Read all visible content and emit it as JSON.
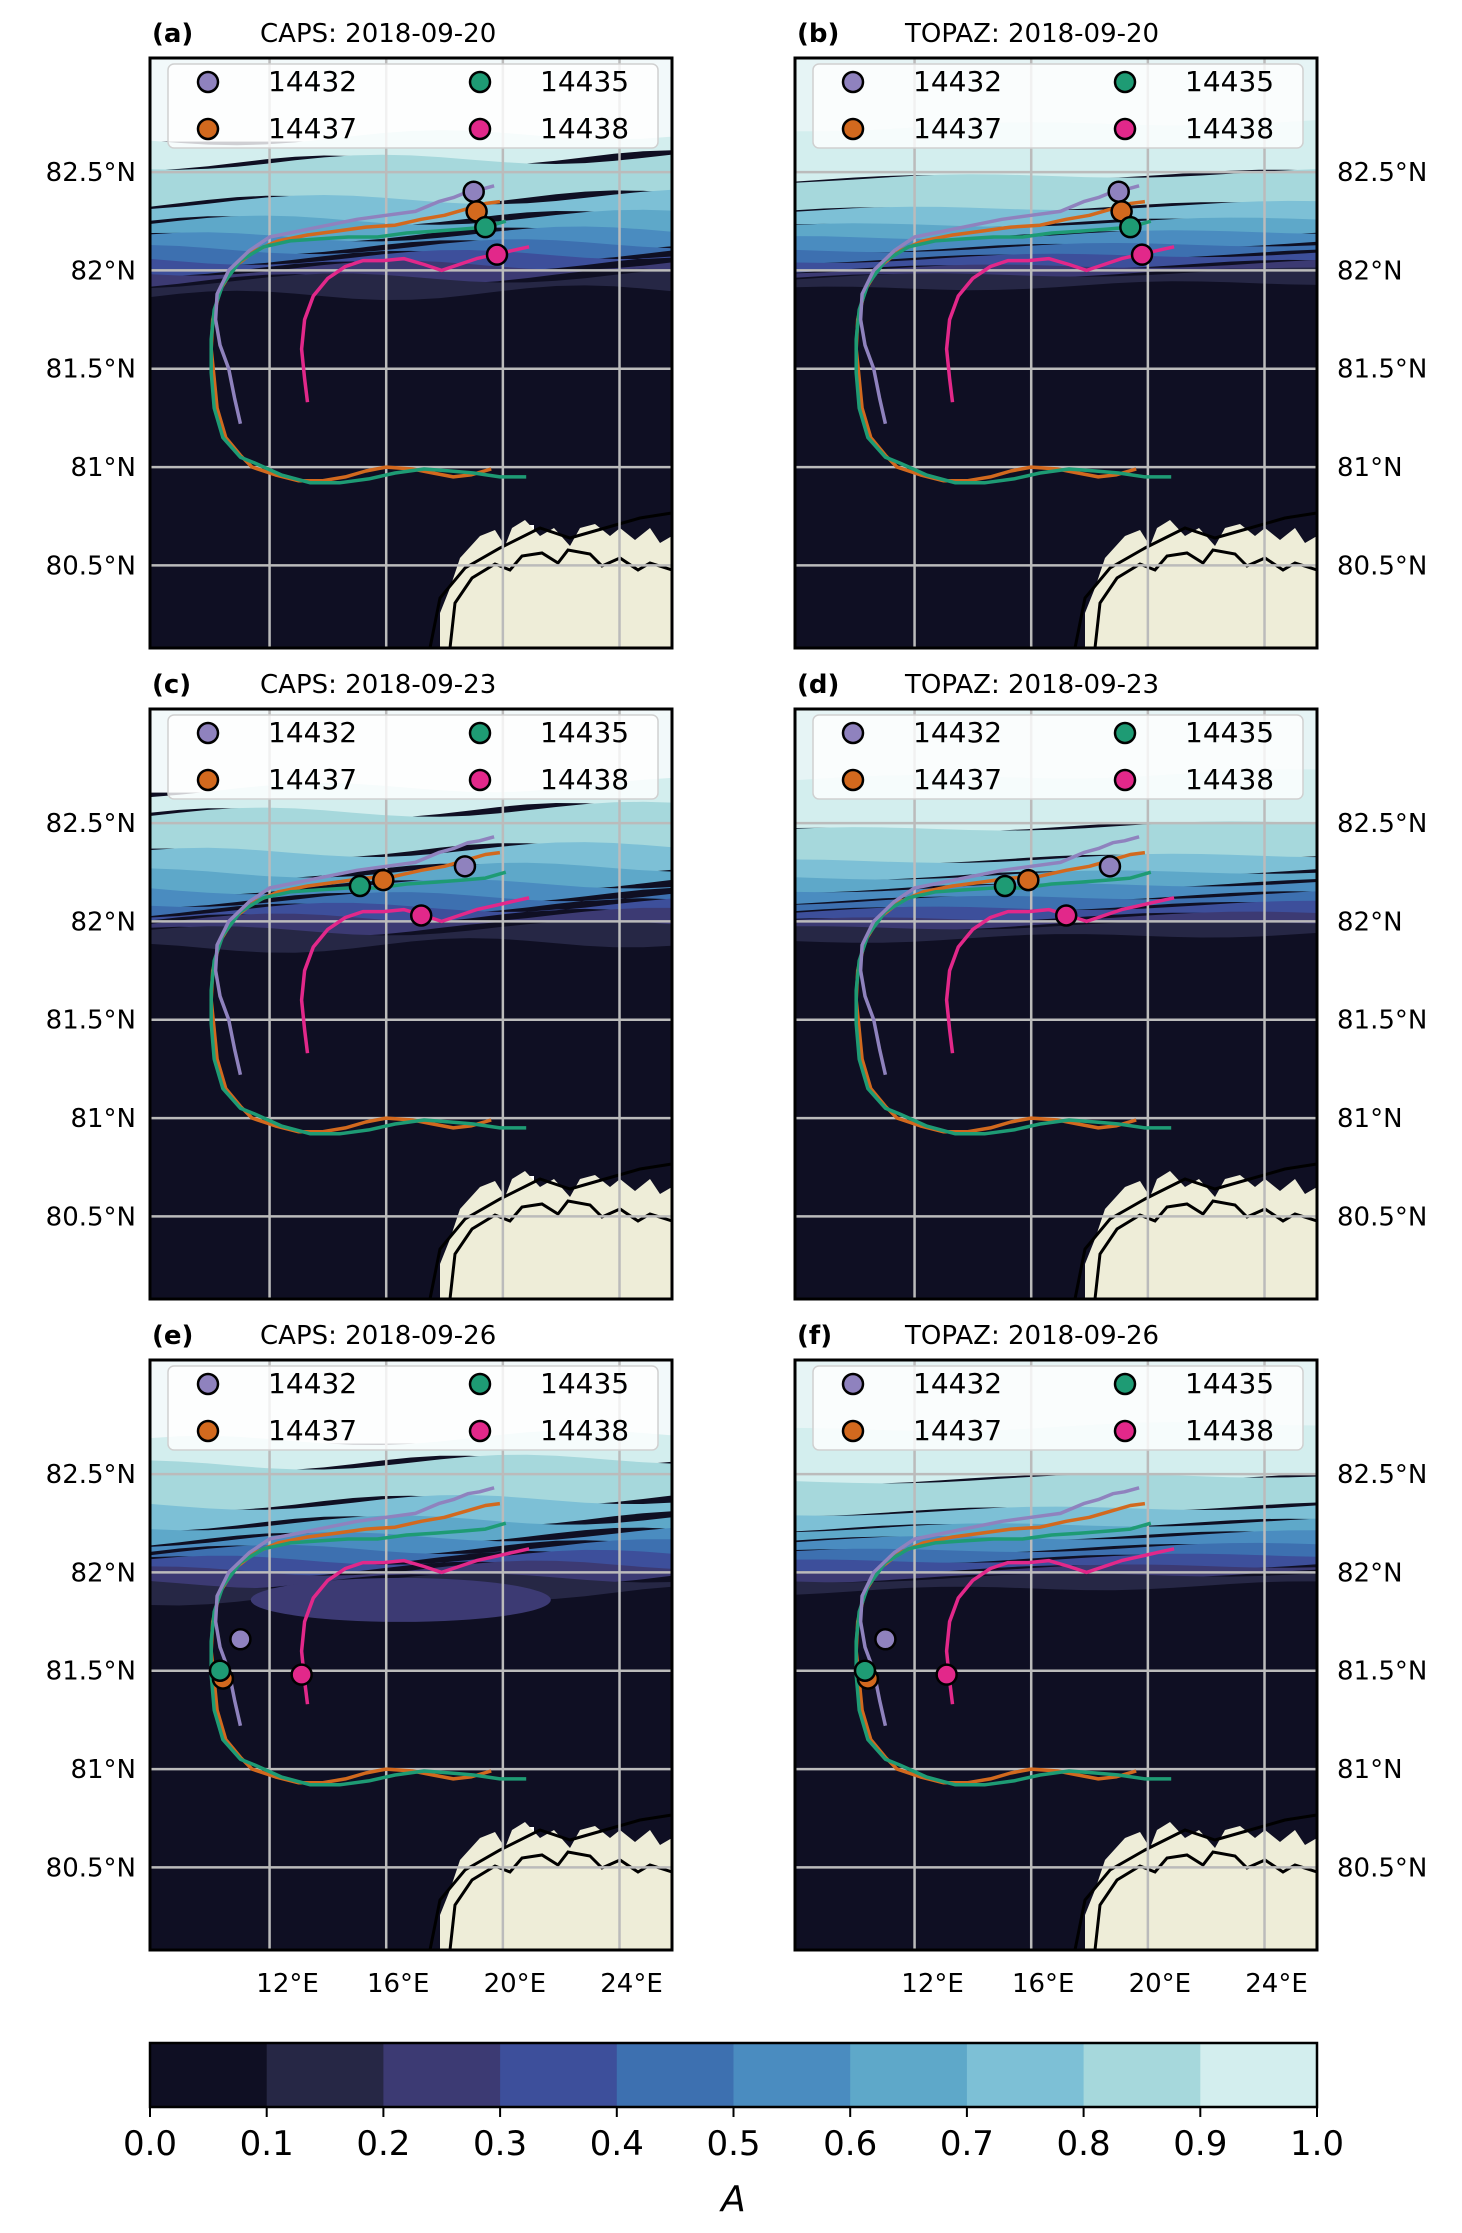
{
  "panels": [
    {
      "id": "a",
      "tag": "(a)",
      "title": "CAPS: 2018-09-20",
      "model": "CAPS",
      "date_index": 0
    },
    {
      "id": "b",
      "tag": "(b)",
      "title": "TOPAZ: 2018-09-20",
      "model": "TOPAZ",
      "date_index": 0
    },
    {
      "id": "c",
      "tag": "(c)",
      "title": "CAPS: 2018-09-23",
      "model": "CAPS",
      "date_index": 1
    },
    {
      "id": "d",
      "tag": "(d)",
      "title": "TOPAZ: 2018-09-23",
      "model": "TOPAZ",
      "date_index": 1
    },
    {
      "id": "e",
      "tag": "(e)",
      "title": "CAPS: 2018-09-26",
      "model": "CAPS",
      "date_index": 2
    },
    {
      "id": "f",
      "tag": "(f)",
      "title": "TOPAZ: 2018-09-26",
      "model": "TOPAZ",
      "date_index": 2
    }
  ],
  "lat_labels": [
    "82.5°N",
    "82°N",
    "81.5°N",
    "81°N",
    "80.5°N"
  ],
  "lon_labels": [
    "12°E",
    "16°E",
    "20°E",
    "24°E"
  ],
  "legend": [
    {
      "id": "14432",
      "color": "#8f82be"
    },
    {
      "id": "14435",
      "color": "#1e9b74"
    },
    {
      "id": "14437",
      "color": "#d2691e"
    },
    {
      "id": "14438",
      "color": "#e2288a"
    }
  ],
  "colorbar": {
    "label": "A",
    "ticks": [
      "0.0",
      "0.1",
      "0.2",
      "0.3",
      "0.4",
      "0.5",
      "0.6",
      "0.7",
      "0.8",
      "0.9",
      "1.0"
    ],
    "colors": [
      "#0f0f23",
      "#262745",
      "#3c3a73",
      "#3d4f9b",
      "#3d70b0",
      "#4a8cc0",
      "#5ea8c9",
      "#7dc0d6",
      "#a6d8dc",
      "#d3eeee"
    ]
  },
  "land_color": "#eeedd8",
  "grid_color": "#bbbbbb",
  "buoy_markers": {
    "14432": [
      [
        19.0,
        82.4
      ],
      [
        18.7,
        82.28
      ],
      [
        11.0,
        81.66
      ]
    ],
    "14437": [
      [
        19.1,
        82.3
      ],
      [
        15.9,
        82.21
      ],
      [
        10.4,
        81.46
      ]
    ],
    "14435": [
      [
        19.4,
        82.22
      ],
      [
        15.1,
        82.18
      ],
      [
        10.3,
        81.5
      ]
    ],
    "14438": [
      [
        19.8,
        82.08
      ],
      [
        17.2,
        82.03
      ],
      [
        13.1,
        81.48
      ]
    ]
  }
}
